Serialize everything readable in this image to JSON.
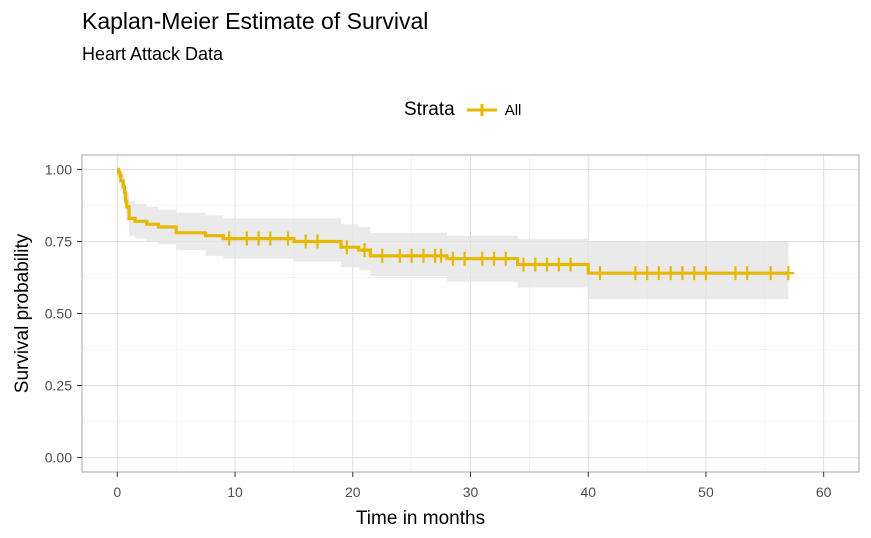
{
  "chart_data": {
    "type": "line",
    "title": "Kaplan-Meier Estimate of Survival",
    "subtitle": "Heart Attack Data",
    "xlabel": "Time in months",
    "ylabel": "Survival probability",
    "xlim": [
      -3,
      63
    ],
    "ylim": [
      -0.05,
      1.05
    ],
    "x_ticks": [
      0,
      10,
      20,
      30,
      40,
      50,
      60
    ],
    "y_ticks": [
      0.0,
      0.25,
      0.5,
      0.75,
      1.0
    ],
    "x_tick_labels": [
      "0",
      "10",
      "20",
      "30",
      "40",
      "50",
      "60"
    ],
    "y_tick_labels": [
      "0.00",
      "0.25",
      "0.50",
      "0.75",
      "1.00"
    ],
    "grid": true,
    "legend": {
      "title": "Strata",
      "placement": "top-center",
      "entries": [
        "All"
      ]
    },
    "series": [
      {
        "name": "All",
        "color": "#E7B800",
        "step": true,
        "x": [
          0,
          0.1,
          0.2,
          0.3,
          0.5,
          0.6,
          0.7,
          0.8,
          1.0,
          1.5,
          2.5,
          3.5,
          5.0,
          7.5,
          9.0,
          15.0,
          19.0,
          20.5,
          21.5,
          28.0,
          34.0,
          40.0,
          57.0
        ],
        "y": [
          1.0,
          0.99,
          0.98,
          0.96,
          0.94,
          0.92,
          0.89,
          0.87,
          0.83,
          0.82,
          0.81,
          0.8,
          0.78,
          0.77,
          0.76,
          0.75,
          0.73,
          0.72,
          0.7,
          0.69,
          0.67,
          0.64,
          0.64
        ],
        "ci_lower": [
          1.0,
          0.97,
          0.96,
          0.93,
          0.9,
          0.88,
          0.85,
          0.82,
          0.77,
          0.76,
          0.75,
          0.74,
          0.72,
          0.7,
          0.69,
          0.68,
          0.66,
          0.65,
          0.63,
          0.61,
          0.59,
          0.55,
          0.55
        ],
        "ci_upper": [
          1.0,
          1.0,
          1.0,
          0.99,
          0.98,
          0.96,
          0.94,
          0.92,
          0.89,
          0.88,
          0.87,
          0.86,
          0.85,
          0.84,
          0.83,
          0.83,
          0.81,
          0.8,
          0.78,
          0.77,
          0.76,
          0.75,
          0.75
        ],
        "censor_times": [
          9.5,
          11,
          12,
          13,
          14.5,
          16,
          17,
          19.5,
          21,
          22.5,
          24,
          25,
          26,
          27,
          27.5,
          28.5,
          29.5,
          31,
          32,
          33,
          34.5,
          35.5,
          36.5,
          37.5,
          38.5,
          41,
          44,
          45,
          46,
          47,
          48,
          49,
          50,
          52.5,
          53.5,
          55.5,
          57
        ]
      }
    ]
  }
}
